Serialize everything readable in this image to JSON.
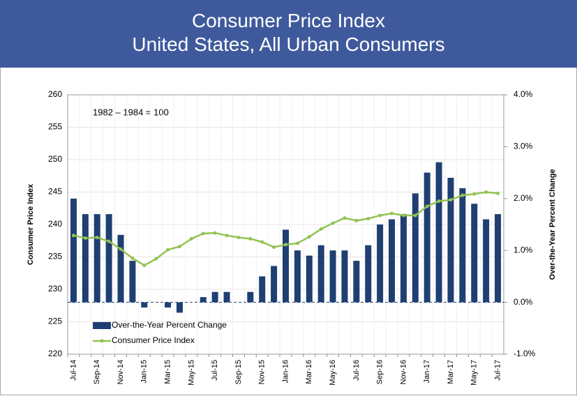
{
  "chart_data": {
    "type": "bar-line",
    "title": "Consumer Price Index",
    "subtitle": "United States, All Urban Consumers",
    "annotation": "1982 – 1984 = 100",
    "y_label": "Consumer Price Index",
    "y2_label": "Over-the-Year Percent Change",
    "categories": [
      "Jul-14",
      null,
      "Sep-14",
      null,
      "Nov-14",
      null,
      "Jan-15",
      null,
      "Mar-15",
      null,
      "May-15",
      null,
      "Jul-15",
      null,
      "Sep-15",
      null,
      "Nov-15",
      null,
      "Jan-16",
      null,
      "Mar-16",
      null,
      "May-16",
      null,
      "Jul-16",
      null,
      "Sep-16",
      null,
      "Nov-16",
      null,
      "Jan-17",
      null,
      "Mar-17",
      null,
      "May-17",
      null,
      "Jul-17"
    ],
    "series": [
      {
        "name": "Over-the-Year Percent Change",
        "type": "bar",
        "axis": "y2",
        "color": "#1f3f73",
        "values": [
          2.0,
          1.7,
          1.7,
          1.7,
          1.3,
          0.8,
          -0.1,
          0.0,
          -0.1,
          -0.2,
          0.0,
          0.1,
          0.2,
          0.2,
          0.0,
          0.2,
          0.5,
          0.7,
          1.4,
          1.0,
          0.9,
          1.1,
          1.0,
          1.0,
          0.8,
          1.1,
          1.5,
          1.6,
          1.7,
          2.1,
          2.5,
          2.7,
          2.4,
          2.2,
          1.9,
          1.6,
          1.7
        ]
      },
      {
        "name": "Consumer Price Index",
        "type": "line",
        "color": "#92c353",
        "values": [
          238.3,
          237.9,
          238.0,
          237.4,
          236.2,
          234.8,
          233.7,
          234.7,
          236.1,
          236.6,
          237.8,
          238.6,
          238.7,
          238.3,
          238.0,
          237.8,
          237.3,
          236.5,
          236.9,
          237.1,
          238.1,
          239.3,
          240.2,
          241.0,
          240.6,
          240.9,
          241.4,
          241.7,
          241.4,
          241.4,
          242.8,
          243.6,
          243.8,
          244.5,
          244.7,
          245.0,
          244.8
        ]
      }
    ],
    "ylim": [
      220,
      260
    ],
    "yticks": [
      220,
      225,
      230,
      235,
      240,
      245,
      250,
      255,
      260
    ],
    "y2lim": [
      -1,
      4
    ],
    "y2ticks": [
      {
        "value": -1,
        "label": "-1.0%"
      },
      {
        "value": 0,
        "label": "0.0%"
      },
      {
        "value": 1,
        "label": "1.0%"
      },
      {
        "value": 2,
        "label": "2.0%"
      },
      {
        "value": 3,
        "label": "3.0%"
      },
      {
        "value": 4,
        "label": "4.0%"
      }
    ],
    "grid": true,
    "legend": "lower left"
  }
}
